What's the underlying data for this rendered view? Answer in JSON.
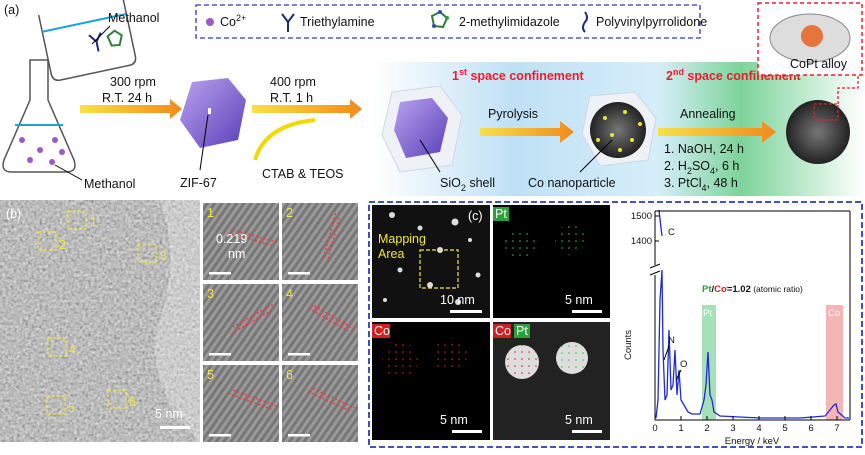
{
  "panel_a": {
    "label": "(a)",
    "legend": {
      "co": [
        "Co",
        "2+"
      ],
      "triethylamine": "Triethylamine",
      "imidazole": "2-methylimidazole",
      "pvp": "Polyvinylpyrrolidone"
    },
    "methanol_beaker": "Methanol",
    "methanol_flask": "Methanol",
    "step1": {
      "speed": "300 rpm",
      "condition": "R.T. 24 h"
    },
    "zif": "ZIF-67",
    "step2": {
      "speed": "400 rpm",
      "condition": "R.T. 1 h",
      "reagents": "CTAB & TEOS"
    },
    "confinement1": [
      "1",
      "st",
      " space confinement"
    ],
    "shell": [
      "SiO",
      "2",
      " shell"
    ],
    "pyrolysis": "Pyrolysis",
    "co_np": "Co nanoparticle",
    "confinement2": [
      "2",
      "nd",
      " space confinement"
    ],
    "annealing": "Annealing",
    "steps": [
      [
        "1. NaOH, 24 h"
      ],
      [
        "2. H",
        "2",
        "SO",
        "4",
        ", 6 h"
      ],
      [
        "3. PtCl",
        "4",
        ", 48 h"
      ]
    ],
    "alloy": "CoPt alloy"
  },
  "panel_b": {
    "label": "(b)",
    "regions": [
      "1",
      "2",
      "3",
      "4",
      "5",
      "6"
    ],
    "scale": "5 nm",
    "insets": [
      "1",
      "2",
      "3",
      "4",
      "5",
      "6"
    ],
    "spacing": [
      "0.219",
      "nm"
    ]
  },
  "panel_c": {
    "label": "(c)",
    "mapping": [
      "Mapping",
      "Area"
    ],
    "mapping_scale": "10 nm",
    "pt_label": "Pt",
    "pt_scale": "5 nm",
    "co_label": "Co",
    "co_scale": "5 nm",
    "overlay_labels": [
      "Co",
      "Pt"
    ],
    "overlay_scale": "5 nm",
    "spectrum": {
      "xlabel": "Energy / keV",
      "ylabel": "Counts",
      "xlim": [
        0,
        7.5
      ],
      "xticks": [
        0,
        1,
        2,
        3,
        4,
        5,
        6,
        7
      ],
      "ylim": [
        1320,
        1520
      ],
      "yticks": [
        1400,
        1500
      ],
      "peaks": [
        "C",
        "N",
        "O",
        "Pt",
        "Co"
      ],
      "ratio": [
        "Pt",
        "/",
        "Co",
        "=1.02",
        " (atomic ratio)"
      ]
    }
  }
}
